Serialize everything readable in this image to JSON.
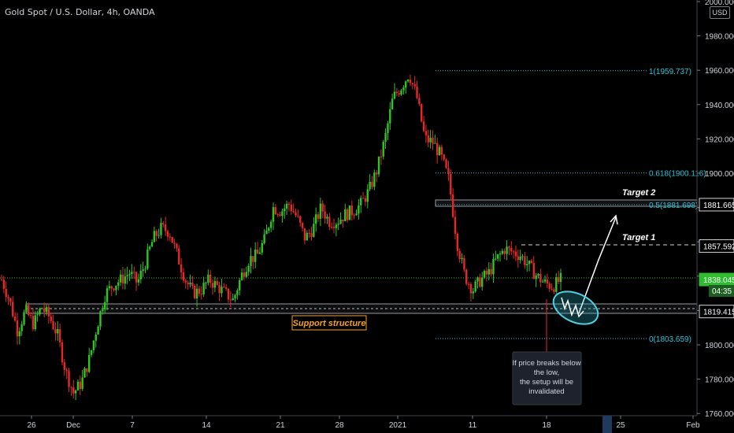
{
  "header": {
    "title": "Gold Spot / U.S. Dollar, 4h, OANDA",
    "currency": "USD"
  },
  "colors": {
    "up": "#26a69a",
    "up_body": "#2ec71f",
    "down": "#e62828",
    "fib": "#26c6da",
    "grid_text": "#d1d4dc",
    "current_price_bg": "#2ebd2e",
    "support_label": "#f7a21b"
  },
  "chart_data": {
    "type": "candlestick",
    "y_axis": {
      "ylim": [
        1760,
        2000
      ],
      "ticks": [
        "2000.000",
        "1980.000",
        "1960.000",
        "1940.000",
        "1920.000",
        "1900.000",
        "1880.000",
        "1860.000",
        "1840.000",
        "1820.000",
        "1800.000",
        "1780.000",
        "1760.000"
      ]
    },
    "x_axis": {
      "ticks": [
        "26",
        "Dec",
        "7",
        "14",
        "21",
        "28",
        "2021",
        "11",
        "18",
        "25",
        "Feb"
      ]
    },
    "price_path": [
      [
        1838,
        1826,
        1808,
        1820,
        1812,
        1822,
        1816,
        1806,
        1785,
        1772,
        1778,
        1792,
        1812,
        1830,
        1835,
        1838,
        1842,
        1836,
        1848,
        1862,
        1868,
        1866,
        1852,
        1838,
        1830,
        1832,
        1838,
        1834,
        1830,
        1826,
        1840,
        1850,
        1852,
        1862,
        1880,
        1878,
        1882,
        1874,
        1862,
        1868,
        1880,
        1872,
        1872,
        1876,
        1878,
        1882,
        1890,
        1902,
        1920,
        1944,
        1950,
        1958,
        1944,
        1920,
        1918,
        1910,
        1896,
        1860,
        1840,
        1832,
        1838,
        1842,
        1850,
        1856,
        1854,
        1852,
        1846,
        1840,
        1836,
        1834,
        1838
      ]
    ],
    "fib_levels": [
      {
        "label": "1(1959.737)",
        "value": 1959.737
      },
      {
        "label": "0.618(1900.116)",
        "value": 1900.116
      },
      {
        "label": "0.5(1881.698)",
        "value": 1881.698
      },
      {
        "label": "0(1803.659)",
        "value": 1803.659
      }
    ],
    "price_labels": [
      {
        "label": "1881.665",
        "value": 1881.665
      },
      {
        "label": "1857.592",
        "value": 1857.592
      },
      {
        "label": "1838.045",
        "value": 1838.045
      },
      {
        "label": "1819.415",
        "value": 1819.415
      }
    ],
    "countdown": "04:35",
    "annotations": {
      "target1": "Target 1",
      "target2": "Target 2",
      "support": "Support structure",
      "note_lines": [
        "If price breaks below",
        "the low,",
        "the setup will be",
        "invalidated"
      ]
    }
  }
}
